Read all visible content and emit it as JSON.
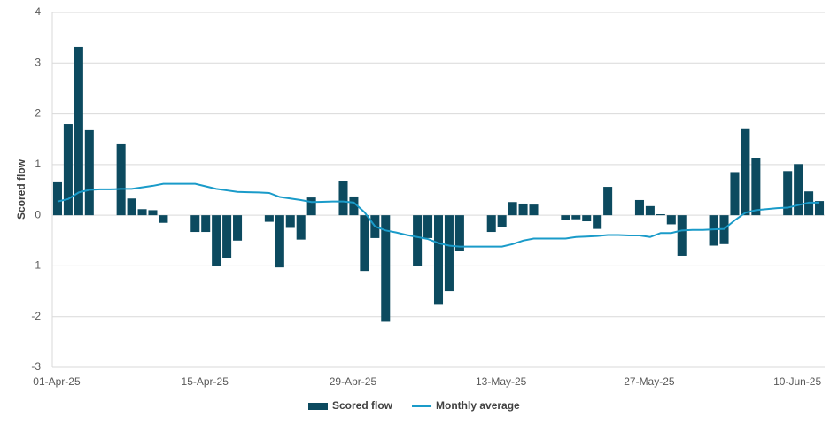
{
  "chart_data": {
    "type": "bar_line",
    "y_label": "Scored flow",
    "categories": [
      "01-Apr-25",
      null,
      null,
      null,
      null,
      null,
      null,
      null,
      null,
      null,
      null,
      null,
      null,
      null,
      "15-Apr-25",
      null,
      null,
      null,
      null,
      null,
      null,
      null,
      null,
      null,
      null,
      null,
      null,
      null,
      "29-Apr-25",
      null,
      null,
      null,
      null,
      null,
      null,
      null,
      null,
      null,
      null,
      null,
      null,
      null,
      "13-May-25",
      null,
      null,
      null,
      null,
      null,
      null,
      null,
      null,
      null,
      null,
      null,
      null,
      null,
      "27-May-25",
      null,
      null,
      null,
      null,
      null,
      null,
      null,
      null,
      null,
      null,
      null,
      null,
      null,
      "10-Jun-25",
      null,
      null
    ],
    "series": [
      {
        "name": "Scored flow",
        "type": "bar",
        "color": "#0c4a5f",
        "values": [
          0.65,
          1.8,
          3.32,
          1.68,
          null,
          null,
          1.4,
          0.33,
          0.12,
          0.1,
          -0.15,
          null,
          null,
          -0.33,
          -0.33,
          -1.0,
          -0.85,
          -0.5,
          null,
          null,
          -0.13,
          -1.03,
          -0.25,
          -0.48,
          0.35,
          null,
          null,
          0.67,
          0.37,
          -1.1,
          -0.45,
          -2.1,
          null,
          null,
          -1.0,
          -0.45,
          -1.75,
          -1.5,
          -0.7,
          null,
          null,
          -0.33,
          -0.23,
          0.26,
          0.23,
          0.21,
          null,
          null,
          -0.1,
          -0.08,
          -0.12,
          -0.27,
          0.56,
          null,
          null,
          0.3,
          0.18,
          0.02,
          -0.18,
          -0.8,
          null,
          null,
          -0.6,
          -0.57,
          0.85,
          1.7,
          1.13,
          null,
          null,
          0.87,
          1.01,
          0.47,
          0.28
        ]
      },
      {
        "name": "Monthly average",
        "type": "line",
        "color": "#1a9bc9",
        "values": [
          0.27,
          0.32,
          0.45,
          0.5,
          0.51,
          0.51,
          0.52,
          0.52,
          0.55,
          0.58,
          0.62,
          0.62,
          0.62,
          0.62,
          0.57,
          0.52,
          0.49,
          0.46,
          0.455,
          0.45,
          0.44,
          0.36,
          0.33,
          0.3,
          0.26,
          0.265,
          0.27,
          0.27,
          0.25,
          0.06,
          -0.22,
          -0.3,
          -0.34,
          -0.39,
          -0.43,
          -0.47,
          -0.55,
          -0.6,
          -0.62,
          -0.62,
          -0.62,
          -0.62,
          -0.62,
          -0.57,
          -0.5,
          -0.46,
          -0.46,
          -0.46,
          -0.46,
          -0.43,
          -0.42,
          -0.41,
          -0.39,
          -0.39,
          -0.4,
          -0.4,
          -0.43,
          -0.35,
          -0.35,
          -0.3,
          -0.29,
          -0.29,
          -0.28,
          -0.27,
          -0.1,
          0.05,
          0.1,
          0.12,
          0.14,
          0.15,
          0.2,
          0.25,
          0.25
        ]
      }
    ],
    "ylim": [
      -3,
      4
    ],
    "yticks": [
      -3,
      -2,
      -1,
      0,
      1,
      2,
      3,
      4
    ],
    "grid": true,
    "legend": "bottom"
  }
}
